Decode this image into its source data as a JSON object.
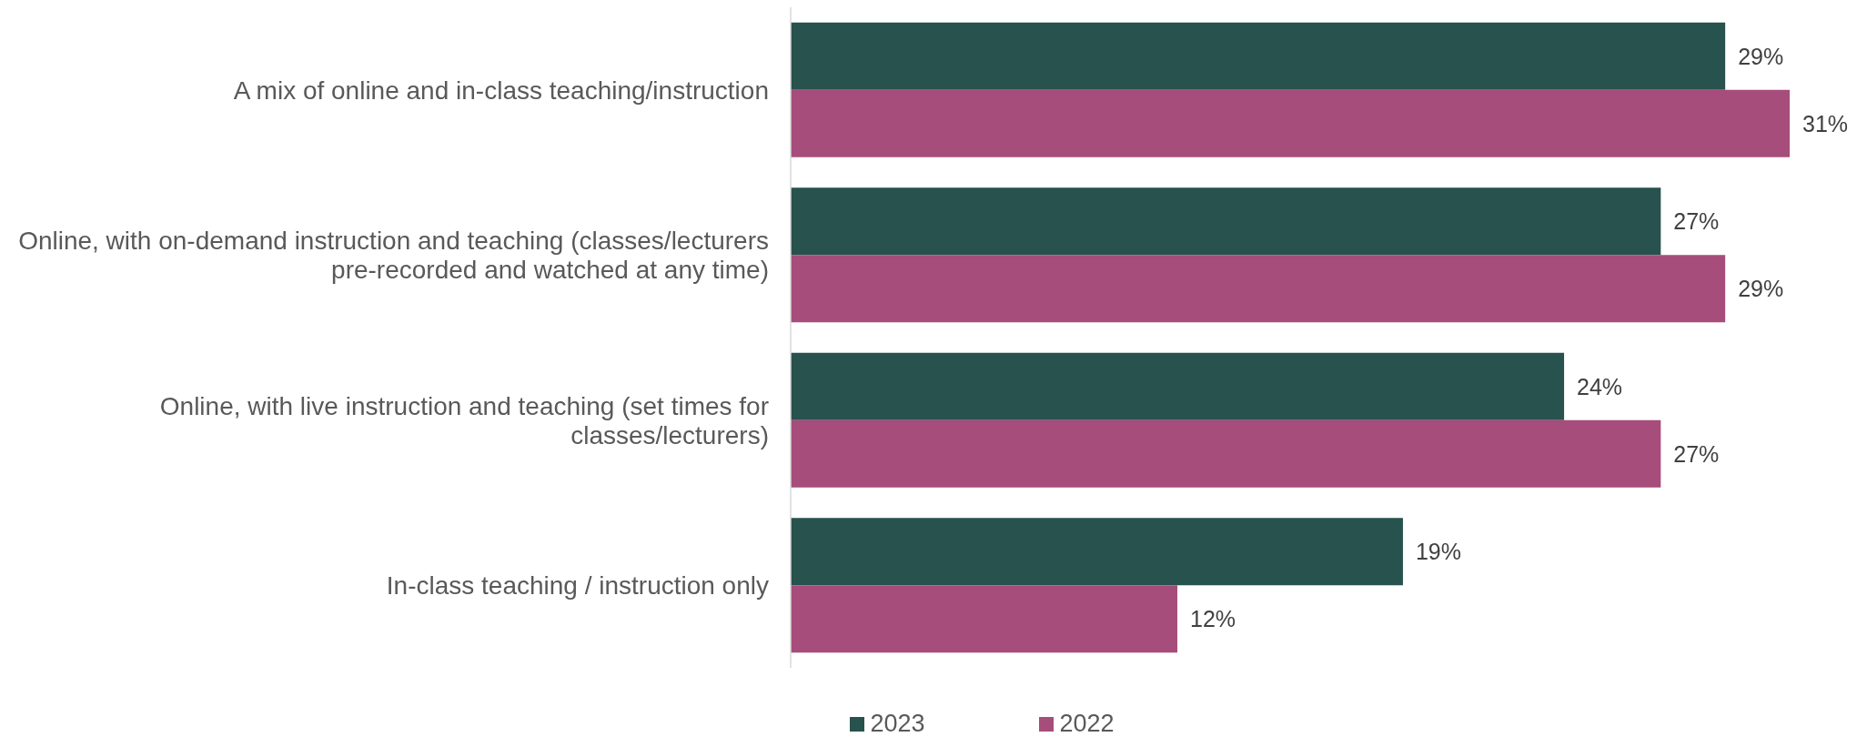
{
  "chart_data": {
    "type": "bar",
    "orientation": "horizontal",
    "categories": [
      "A mix of online and in-class teaching/instruction",
      "Online, with on-demand instruction and teaching (classes/lecturers pre-recorded and watched at any time)",
      "Online, with live instruction and teaching (set times for classes/lecturers)",
      "In-class teaching / instruction only"
    ],
    "series": [
      {
        "name": "2023",
        "color": "#28524d",
        "values": [
          29,
          27,
          24,
          19
        ],
        "value_labels": [
          "29%",
          "27%",
          "24%",
          "19%"
        ]
      },
      {
        "name": "2022",
        "color": "#a64d7b",
        "values": [
          31,
          29,
          27,
          12
        ],
        "value_labels": [
          "31%",
          "29%",
          "27%",
          "12%"
        ]
      }
    ],
    "tick_labels": "y",
    "legend": "bottom"
  }
}
